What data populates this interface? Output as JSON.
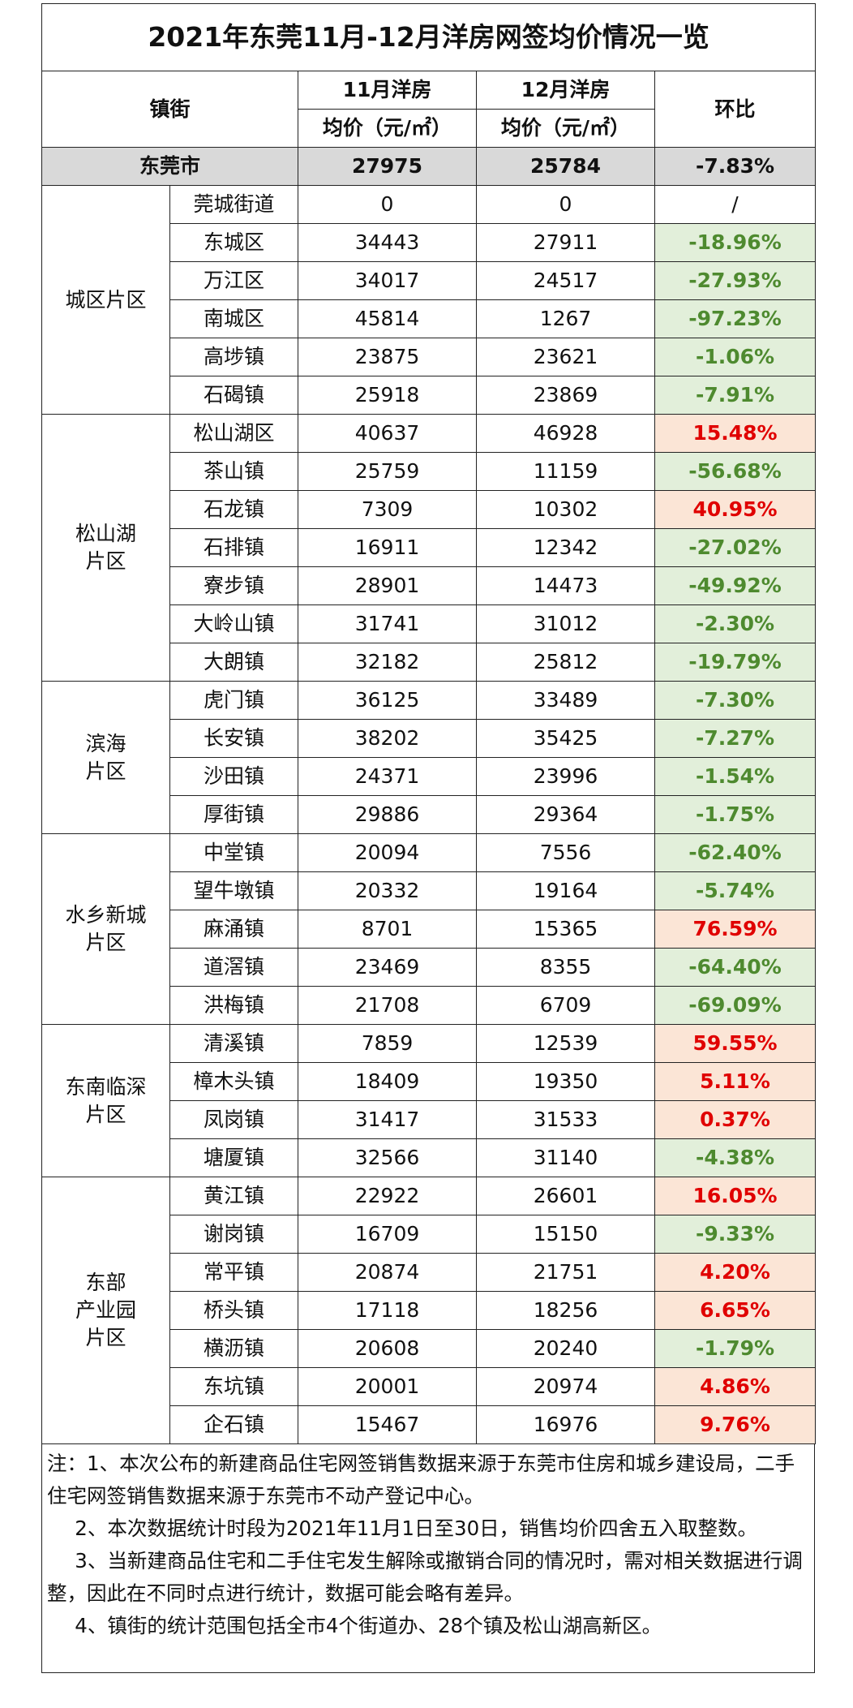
{
  "title": "2021年东莞11月-12月洋房网签均价情况一览",
  "header": {
    "district": "镇街",
    "nov": "11月洋房",
    "dec": "12月洋房",
    "nov_unit": "均价（元/㎡）",
    "dec_unit": "均价（元/㎡）",
    "mom": "环比"
  },
  "total": [
    "东莞市",
    27975,
    25784,
    "-7.83%"
  ],
  "groups": [
    {
      "name": "城区片区",
      "rows": [
        [
          "莞城街道",
          0,
          0,
          "/"
        ],
        [
          "东城区",
          34443,
          27911,
          "-18.96%"
        ],
        [
          "万江区",
          34017,
          24517,
          "-27.93%"
        ],
        [
          "南城区",
          45814,
          1267,
          "-97.23%"
        ],
        [
          "高埗镇",
          23875,
          23621,
          "-1.06%"
        ],
        [
          "石碣镇",
          25918,
          23869,
          "-7.91%"
        ]
      ]
    },
    {
      "name": "松山湖\n片区",
      "rows": [
        [
          "松山湖区",
          40637,
          46928,
          "15.48%"
        ],
        [
          "茶山镇",
          25759,
          11159,
          "-56.68%"
        ],
        [
          "石龙镇",
          7309,
          10302,
          "40.95%"
        ],
        [
          "石排镇",
          16911,
          12342,
          "-27.02%"
        ],
        [
          "寮步镇",
          28901,
          14473,
          "-49.92%"
        ],
        [
          "大岭山镇",
          31741,
          31012,
          "-2.30%"
        ],
        [
          "大朗镇",
          32182,
          25812,
          "-19.79%"
        ]
      ]
    },
    {
      "name": "滨海\n片区",
      "rows": [
        [
          "虎门镇",
          36125,
          33489,
          "-7.30%"
        ],
        [
          "长安镇",
          38202,
          35425,
          "-7.27%"
        ],
        [
          "沙田镇",
          24371,
          23996,
          "-1.54%"
        ],
        [
          "厚街镇",
          29886,
          29364,
          "-1.75%"
        ]
      ]
    },
    {
      "name": "水乡新城\n片区",
      "rows": [
        [
          "中堂镇",
          20094,
          7556,
          "-62.40%"
        ],
        [
          "望牛墩镇",
          20332,
          19164,
          "-5.74%"
        ],
        [
          "麻涌镇",
          8701,
          15365,
          "76.59%"
        ],
        [
          "道滘镇",
          23469,
          8355,
          "-64.40%"
        ],
        [
          "洪梅镇",
          21708,
          6709,
          "-69.09%"
        ]
      ]
    },
    {
      "name": "东南临深\n片区",
      "rows": [
        [
          "清溪镇",
          7859,
          12539,
          "59.55%"
        ],
        [
          "樟木头镇",
          18409,
          19350,
          "5.11%"
        ],
        [
          "凤岗镇",
          31417,
          31533,
          "0.37%"
        ],
        [
          "塘厦镇",
          32566,
          31140,
          "-4.38%"
        ]
      ]
    },
    {
      "name": "东部\n产业园\n片区",
      "rows": [
        [
          "黄江镇",
          22922,
          26601,
          "16.05%"
        ],
        [
          "谢岗镇",
          16709,
          15150,
          "-9.33%"
        ],
        [
          "常平镇",
          20874,
          21751,
          "4.20%"
        ],
        [
          "桥头镇",
          17118,
          18256,
          "6.65%"
        ],
        [
          "横沥镇",
          20608,
          20240,
          "-1.79%"
        ],
        [
          "东坑镇",
          20001,
          20974,
          "4.86%"
        ],
        [
          "企石镇",
          15467,
          16976,
          "9.76%"
        ]
      ]
    }
  ],
  "notes": [
    "注：1、本次公布的新建商品住宅网签销售数据来源于东莞市住房和城乡建设局，二手住宅网签销售数据来源于东莞市不动产登记中心。",
    "2、本次数据统计时段为2021年11月1日至30日，销售均价四舍五入取整数。",
    "3、当新建商品住宅和二手住宅发生解除或撤销合同的情况时，需对相关数据进行调整，因此在不同时点进行统计，数据可能会略有差异。",
    "4、镇街的统计范围包括全市4个街道办、28个镇及松山湖高新区。"
  ]
}
